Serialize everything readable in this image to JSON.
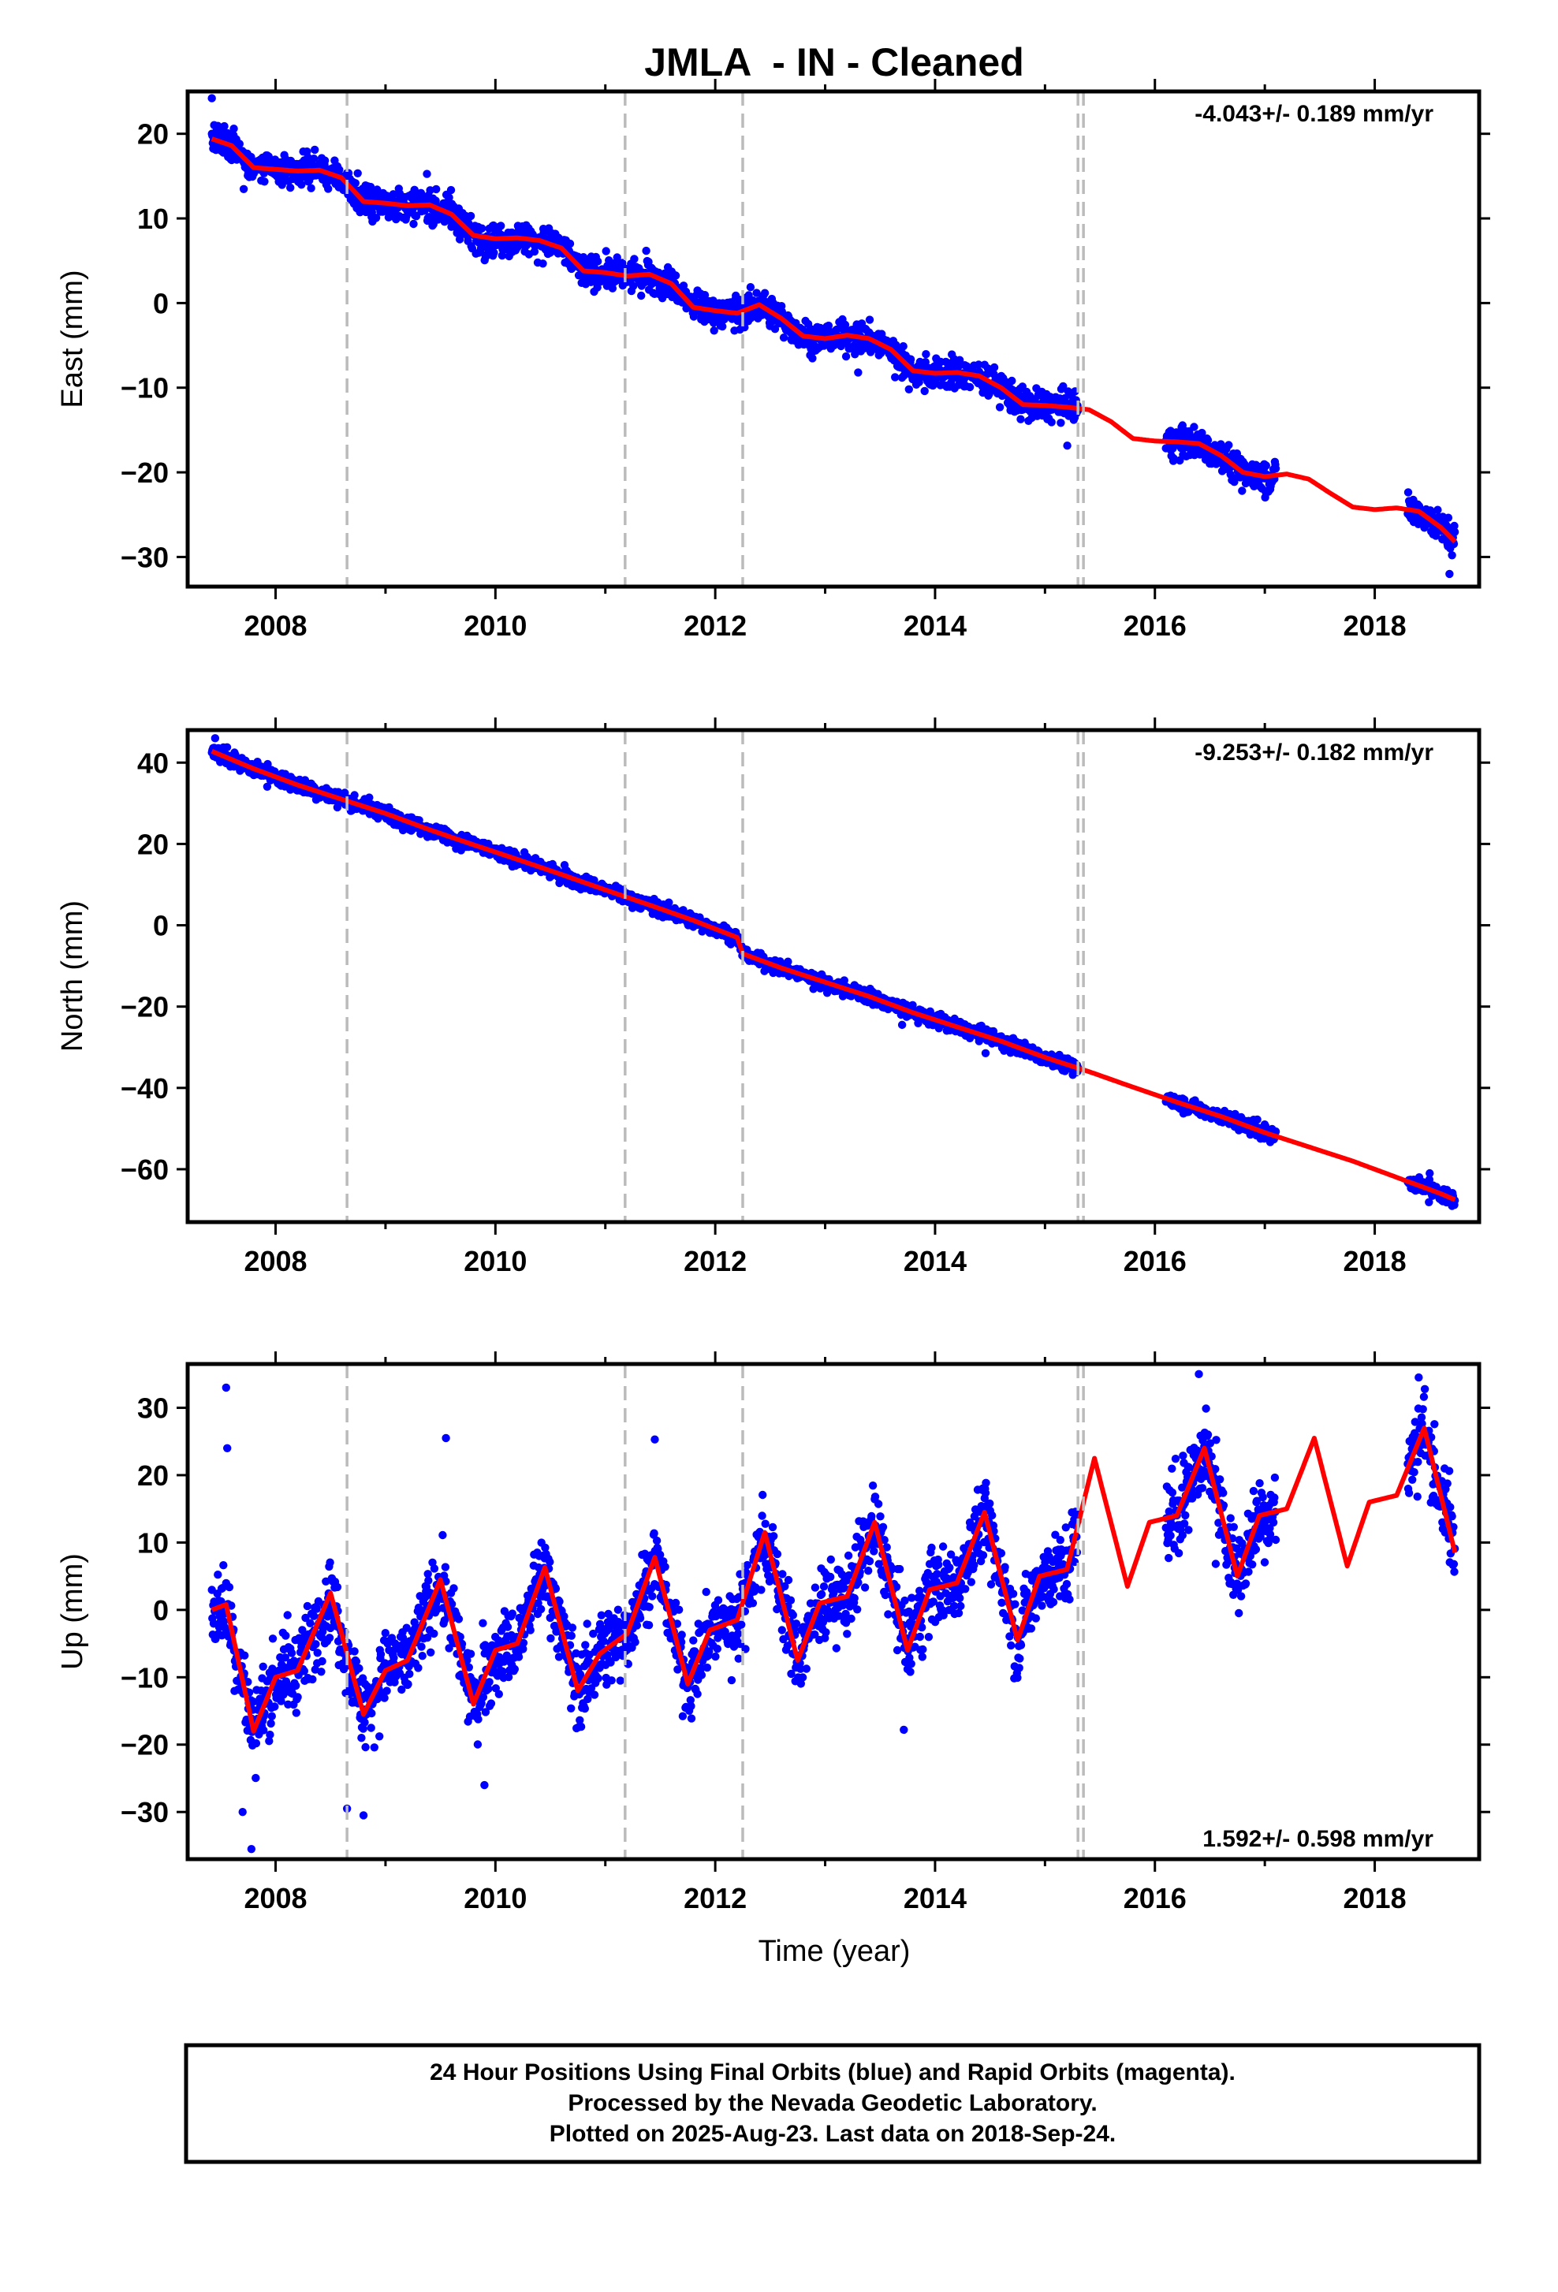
{
  "title": "JMLA  - IN - Cleaned",
  "xlabel": "Time (year)",
  "x_ticks": [
    2008,
    2010,
    2012,
    2014,
    2016,
    2018
  ],
  "footer": {
    "line1": "24 Hour Positions Using Final Orbits (blue) and Rapid Orbits (magenta).",
    "line2": "Processed by the Nevada Geodetic Laboratory.",
    "line3": "Plotted on 2025-Aug-23. Last data on 2018-Sep-24."
  },
  "colors": {
    "data_points": "#0000ff",
    "model_line": "#ff0000",
    "event_lines": "#bbbbbb"
  },
  "chart_data": [
    {
      "type": "scatter",
      "panel": "east",
      "ylabel": "East (mm)",
      "xlim": [
        2007.2,
        2018.95
      ],
      "ylim": [
        -33.5,
        25.0
      ],
      "y_ticks": [
        20,
        10,
        0,
        -10,
        -20,
        -30
      ],
      "rate_label": "-4.043+/- 0.189 mm/yr",
      "rate_position": "top-right",
      "event_lines": [
        2008.65,
        2011.18,
        2012.25,
        2015.3,
        2015.35
      ],
      "data_segments": [
        [
          2007.42,
          2015.3
        ],
        [
          2016.1,
          2017.1
        ],
        [
          2018.3,
          2018.73
        ]
      ],
      "trend": {
        "slope": -4.043,
        "ref_year": 2007.42,
        "offset": 19.0,
        "annual_amp": 0.8,
        "semiannual_amp": 0.25,
        "noise": 1.3
      },
      "outliers": [
        [
          2007.42,
          24.2
        ],
        [
          2007.62,
          20.6
        ],
        [
          2018.68,
          -32.0
        ],
        [
          2013.3,
          -8.2
        ]
      ],
      "model": {
        "x": [
          2007.42,
          2007.6,
          2007.8,
          2008.0,
          2008.2,
          2008.4,
          2008.6,
          2008.8,
          2009.0,
          2009.2,
          2009.4,
          2009.6,
          2009.8,
          2010.0,
          2010.2,
          2010.4,
          2010.6,
          2010.8,
          2011.0,
          2011.2,
          2011.4,
          2011.6,
          2011.8,
          2012.0,
          2012.2,
          2012.4,
          2012.6,
          2012.8,
          2013.0,
          2013.2,
          2013.4,
          2013.6,
          2013.8,
          2014.0,
          2014.2,
          2014.4,
          2014.6,
          2014.8,
          2015.0,
          2015.2,
          2015.4,
          2015.6,
          2015.8,
          2016.0,
          2016.2,
          2016.4,
          2016.6,
          2016.8,
          2017.0,
          2017.2,
          2017.4,
          2017.6,
          2017.8,
          2018.0,
          2018.2,
          2018.4,
          2018.6,
          2018.73
        ],
        "y": [
          19.4,
          18.6,
          16.0,
          15.8,
          15.6,
          15.7,
          14.8,
          12.0,
          11.8,
          11.5,
          11.6,
          10.5,
          8.0,
          7.6,
          7.7,
          7.4,
          6.5,
          3.8,
          3.6,
          3.2,
          3.4,
          2.3,
          -0.5,
          -0.9,
          -1.2,
          -0.2,
          -1.8,
          -3.9,
          -4.2,
          -3.8,
          -4.2,
          -5.5,
          -8.0,
          -8.3,
          -8.2,
          -8.6,
          -10.0,
          -12.0,
          -12.1,
          -12.3,
          -12.6,
          -14.0,
          -16.0,
          -16.3,
          -16.4,
          -16.6,
          -18.0,
          -20.0,
          -20.5,
          -20.2,
          -20.8,
          -22.5,
          -24.1,
          -24.4,
          -24.2,
          -24.6,
          -26.5,
          -28.2
        ]
      }
    },
    {
      "type": "scatter",
      "panel": "north",
      "ylabel": "North (mm)",
      "xlim": [
        2007.2,
        2018.95
      ],
      "ylim": [
        -73.0,
        48.0
      ],
      "y_ticks": [
        40,
        20,
        0,
        -20,
        -40,
        -60
      ],
      "rate_label": "-9.253+/- 0.182 mm/yr",
      "rate_position": "top-right",
      "event_lines": [
        2008.65,
        2011.18,
        2012.25,
        2015.3,
        2015.35
      ],
      "data_segments": [
        [
          2007.42,
          2015.3
        ],
        [
          2016.1,
          2017.1
        ],
        [
          2018.3,
          2018.73
        ]
      ],
      "trend": {
        "slope": -9.253,
        "ref_year": 2007.42,
        "offset": 43.0,
        "annual_amp": 1.0,
        "semiannual_amp": 0.3,
        "noise": 1.2
      },
      "outliers": [
        [
          2007.45,
          46.0
        ],
        [
          2013.7,
          -24.5
        ],
        [
          2018.5,
          -61.0
        ]
      ],
      "model": {
        "x": [
          2007.42,
          2007.8,
          2008.2,
          2008.6,
          2009.0,
          2009.4,
          2009.8,
          2010.2,
          2010.6,
          2011.0,
          2011.4,
          2011.8,
          2012.2,
          2012.25,
          2012.6,
          2013.0,
          2013.4,
          2013.8,
          2014.2,
          2014.6,
          2015.0,
          2015.4,
          2015.8,
          2016.2,
          2016.6,
          2017.0,
          2017.4,
          2017.8,
          2018.2,
          2018.6,
          2018.73
        ],
        "y": [
          42.8,
          38.5,
          34.5,
          31.0,
          27.5,
          23.5,
          19.8,
          16.2,
          12.5,
          8.7,
          5.0,
          1.2,
          -3.0,
          -7.0,
          -10.5,
          -14.0,
          -17.5,
          -21.5,
          -25.0,
          -28.5,
          -32.5,
          -36.0,
          -39.8,
          -43.5,
          -47.0,
          -51.0,
          -54.5,
          -58.0,
          -62.0,
          -66.0,
          -67.5
        ]
      }
    },
    {
      "type": "scatter",
      "panel": "up",
      "ylabel": "Up (mm)",
      "xlim": [
        2007.2,
        2018.95
      ],
      "ylim": [
        -37.0,
        36.5
      ],
      "y_ticks": [
        30,
        20,
        10,
        0,
        -10,
        -20,
        -30
      ],
      "rate_label": "1.592+/- 0.598 mm/yr",
      "rate_position": "bottom-right",
      "event_lines": [
        2008.65,
        2011.18,
        2012.25,
        2015.3,
        2015.35
      ],
      "data_segments": [
        [
          2007.42,
          2015.3
        ],
        [
          2016.1,
          2017.1
        ],
        [
          2018.3,
          2018.73
        ]
      ],
      "trend": {
        "slope": 1.592,
        "ref_year": 2007.42,
        "offset": -5.0,
        "annual_amp": 10.0,
        "semiannual_amp": 3.0,
        "noise": 4.0
      },
      "outliers": [
        [
          2007.55,
          33.0
        ],
        [
          2007.56,
          24.0
        ],
        [
          2007.78,
          -35.5
        ],
        [
          2007.7,
          -30.0
        ],
        [
          2009.55,
          25.5
        ],
        [
          2011.45,
          25.3
        ],
        [
          2008.65,
          -29.5
        ],
        [
          2008.8,
          -30.5
        ],
        [
          2016.4,
          35.0
        ],
        [
          2018.4,
          34.5
        ],
        [
          2009.9,
          -26.0
        ]
      ],
      "model": {
        "x": [
          2007.42,
          2007.55,
          2007.8,
          2008.0,
          2008.2,
          2008.5,
          2008.8,
          2009.0,
          2009.2,
          2009.5,
          2009.8,
          2010.0,
          2010.2,
          2010.45,
          2010.75,
          2010.95,
          2011.2,
          2011.45,
          2011.75,
          2011.95,
          2012.2,
          2012.45,
          2012.75,
          2012.95,
          2013.2,
          2013.45,
          2013.75,
          2013.95,
          2014.2,
          2014.45,
          2014.75,
          2014.95,
          2015.2,
          2015.45,
          2015.75,
          2015.95,
          2016.2,
          2016.45,
          2016.75,
          2016.95,
          2017.2,
          2017.45,
          2017.75,
          2017.95,
          2018.2,
          2018.45,
          2018.73
        ],
        "y": [
          0.0,
          0.8,
          -18.0,
          -10.0,
          -9.0,
          2.5,
          -15.5,
          -9.0,
          -7.5,
          4.5,
          -14.0,
          -6.0,
          -5.0,
          6.3,
          -12.0,
          -6.5,
          -3.5,
          7.8,
          -11.0,
          -3.0,
          -1.5,
          11.5,
          -7.5,
          1.0,
          2.0,
          13.0,
          -6.0,
          3.0,
          4.0,
          14.5,
          -4.5,
          5.0,
          6.0,
          22.5,
          3.5,
          13.0,
          14.0,
          24.0,
          5.0,
          14.0,
          15.0,
          25.5,
          6.5,
          16.0,
          17.0,
          27.0,
          8.5
        ]
      }
    }
  ]
}
